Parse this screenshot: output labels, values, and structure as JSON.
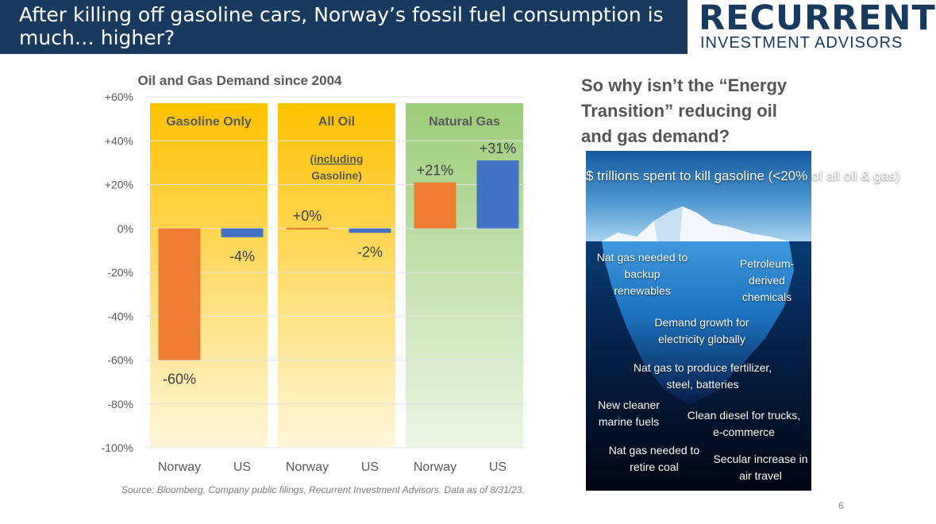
{
  "header": {
    "title": "After killing off gasoline cars, Norway’s fossil fuel consumption is much… higher?"
  },
  "logo": {
    "main": "RECURRENT",
    "sub": "INVESTMENT ADVISORS",
    "color": "#173a5e"
  },
  "chart_data": {
    "type": "bar",
    "title": "Oil and Gas Demand since 2004",
    "ylim": [
      -100,
      60
    ],
    "yticks": [
      60,
      40,
      20,
      0,
      -20,
      -40,
      -60,
      -80,
      -100
    ],
    "ytick_labels": [
      "+60%",
      "+40%",
      "+20%",
      "0%",
      "-20%",
      "-40%",
      "-60%",
      "-80%",
      "-100%"
    ],
    "grid": true,
    "panels": [
      {
        "label": "Gasoline Only",
        "sublabel": "",
        "color_top": "#fdc100",
        "color_bottom": "#fff7da",
        "bars": [
          {
            "category": "Norway",
            "value": -60,
            "label": "-60%",
            "color": "#ed7d31"
          },
          {
            "category": "US",
            "value": -4,
            "label": "-4%",
            "color": "#4472c4"
          }
        ]
      },
      {
        "label": "All Oil",
        "sublabel": "(including",
        "sublabel2": "Gasoline)",
        "color_top": "#fdc100",
        "color_bottom": "#fff7da",
        "bars": [
          {
            "category": "Norway",
            "value": 0.3,
            "label": "+0%",
            "color": "#ed7d31"
          },
          {
            "category": "US",
            "value": -2,
            "label": "-2%",
            "color": "#4472c4"
          }
        ]
      },
      {
        "label": "Natural Gas",
        "sublabel": "",
        "color_top": "#9ccd7a",
        "color_bottom": "#eef6e6",
        "bars": [
          {
            "category": "Norway",
            "value": 21,
            "label": "+21%",
            "color": "#ed7d31"
          },
          {
            "category": "US",
            "value": 31,
            "label": "+31%",
            "color": "#4472c4"
          }
        ]
      }
    ]
  },
  "source": "Source: Bloomberg, Company public filings, Recurrent Investment Advisors. Data as of 8/31/23.",
  "question": "So why isn’t the “Energy Transition” reducing oil and gas demand?",
  "iceberg": {
    "top": "$ trillions spent to kill gasoline (<20% of all oil & gas)",
    "labels": [
      "Nat gas needed to backup renewables",
      "Petroleum-derived chemicals",
      "Demand growth for electricity globally",
      "Nat gas to produce fertilizer, steel, batteries",
      "New cleaner marine fuels",
      "Clean diesel for trucks, e-commerce",
      "Nat gas needed to retire coal",
      "Secular increase in air travel"
    ]
  },
  "page_number": "6"
}
